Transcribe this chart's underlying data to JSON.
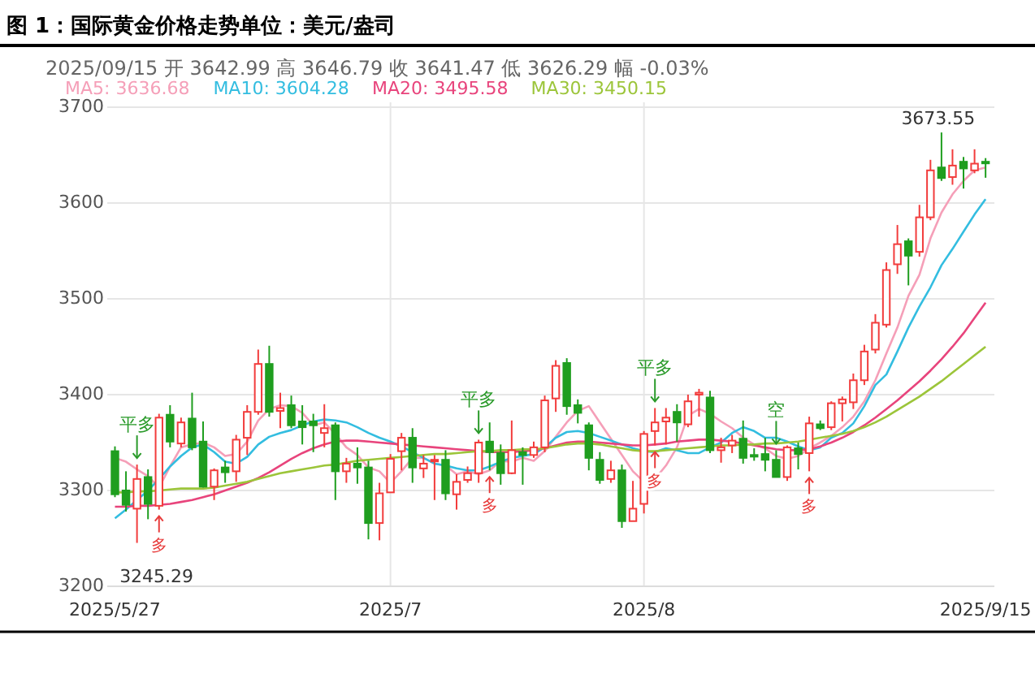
{
  "chart_data": {
    "type": "candlestick",
    "title": "图 1：国际黄金价格走势单位：美元/盎司",
    "subtitle": "2025/09/15 开 3642.99 高 3646.79 收 3641.47 低 3626.29 幅 -0.03%",
    "categories": [
      "2025/5/27",
      null,
      null,
      null,
      null,
      null,
      null,
      null,
      null,
      null,
      null,
      null,
      null,
      null,
      null,
      null,
      null,
      null,
      null,
      null,
      null,
      null,
      null,
      null,
      null,
      "2025/7",
      null,
      null,
      null,
      null,
      null,
      null,
      null,
      null,
      null,
      null,
      null,
      null,
      null,
      null,
      null,
      null,
      null,
      null,
      null,
      null,
      null,
      null,
      "2025/8",
      null,
      null,
      null,
      null,
      null,
      null,
      null,
      null,
      null,
      null,
      null,
      null,
      null,
      null,
      null,
      null,
      null,
      null,
      null,
      null,
      null,
      null,
      null,
      null,
      null,
      null,
      null,
      null,
      null,
      null,
      "2025/9/15"
    ],
    "ohlc": [
      [
        3341,
        3346,
        3293,
        3296
      ],
      [
        3300,
        3320,
        3278,
        3285
      ],
      [
        3281,
        3327,
        3245.29,
        3312
      ],
      [
        3314,
        3322,
        3270,
        3286
      ],
      [
        3284,
        3380,
        3280,
        3376
      ],
      [
        3379,
        3389,
        3345,
        3351
      ],
      [
        3349,
        3376,
        3345,
        3371
      ],
      [
        3375,
        3402,
        3342,
        3345
      ],
      [
        3351,
        3372,
        3303,
        3304
      ],
      [
        3304,
        3323,
        3290,
        3321
      ],
      [
        3324,
        3331,
        3308,
        3319
      ],
      [
        3320,
        3358,
        3309,
        3353
      ],
      [
        3355,
        3389,
        3337,
        3382
      ],
      [
        3382,
        3447,
        3379,
        3432
      ],
      [
        3432,
        3451,
        3377,
        3382
      ],
      [
        3383,
        3402,
        3365,
        3386
      ],
      [
        3389,
        3399,
        3365,
        3368
      ],
      [
        3372,
        3389,
        3348,
        3366
      ],
      [
        3372,
        3380,
        3340,
        3368
      ],
      [
        3360,
        3390,
        3345,
        3365
      ],
      [
        3368,
        3371,
        3290,
        3320
      ],
      [
        3320,
        3334,
        3308,
        3328
      ],
      [
        3328,
        3345,
        3307,
        3324
      ],
      [
        3324,
        3331,
        3249,
        3266
      ],
      [
        3266,
        3308,
        3248,
        3297
      ],
      [
        3298,
        3338,
        3298,
        3333
      ],
      [
        3341,
        3360,
        3321,
        3355
      ],
      [
        3355,
        3365,
        3308,
        3324
      ],
      [
        3323,
        3337,
        3313,
        3328
      ],
      [
        3331,
        3337,
        3290,
        3332
      ],
      [
        3332,
        3342,
        3290,
        3297
      ],
      [
        3296,
        3317,
        3280,
        3309
      ],
      [
        3311,
        3325,
        3308,
        3318
      ],
      [
        3318,
        3353,
        3308,
        3350
      ],
      [
        3351,
        3371,
        3321,
        3340
      ],
      [
        3339,
        3348,
        3306,
        3318
      ],
      [
        3318,
        3373,
        3317,
        3342
      ],
      [
        3340,
        3345,
        3306,
        3337
      ],
      [
        3337,
        3351,
        3334,
        3345
      ],
      [
        3345,
        3399,
        3340,
        3394
      ],
      [
        3396,
        3436,
        3382,
        3430
      ],
      [
        3433,
        3438,
        3379,
        3388
      ],
      [
        3389,
        3395,
        3370,
        3381
      ],
      [
        3368,
        3371,
        3321,
        3334
      ],
      [
        3332,
        3340,
        3307,
        3311
      ],
      [
        3312,
        3331,
        3308,
        3321
      ],
      [
        3321,
        3327,
        3261,
        3268
      ],
      [
        3268,
        3310,
        3268,
        3281
      ],
      [
        3286,
        3362,
        3276,
        3359
      ],
      [
        3362,
        3386,
        3347,
        3371
      ],
      [
        3372,
        3386,
        3348,
        3376
      ],
      [
        3382,
        3390,
        3351,
        3371
      ],
      [
        3369,
        3400,
        3366,
        3393
      ],
      [
        3400,
        3406,
        3377,
        3402
      ],
      [
        3397,
        3404,
        3339,
        3342
      ],
      [
        3342,
        3355,
        3329,
        3345
      ],
      [
        3347,
        3358,
        3339,
        3352
      ],
      [
        3354,
        3373,
        3328,
        3334
      ],
      [
        3337,
        3344,
        3331,
        3336
      ],
      [
        3338,
        3355,
        3320,
        3332
      ],
      [
        3332,
        3342,
        3314,
        3314
      ],
      [
        3314,
        3347,
        3310,
        3345
      ],
      [
        3344,
        3350,
        3322,
        3338
      ],
      [
        3339,
        3377,
        3320,
        3370
      ],
      [
        3369,
        3373,
        3363,
        3365
      ],
      [
        3366,
        3393,
        3363,
        3391
      ],
      [
        3391,
        3398,
        3372,
        3395
      ],
      [
        3392,
        3422,
        3385,
        3415
      ],
      [
        3415,
        3452,
        3410,
        3445
      ],
      [
        3447,
        3484,
        3443,
        3475
      ],
      [
        3473,
        3538,
        3470,
        3530
      ],
      [
        3536,
        3577,
        3526,
        3557
      ],
      [
        3560,
        3563,
        3514,
        3545
      ],
      [
        3549,
        3598,
        3544,
        3585
      ],
      [
        3585,
        3645,
        3582,
        3634
      ],
      [
        3637,
        3673.55,
        3623,
        3626
      ],
      [
        3627,
        3656,
        3619,
        3639
      ],
      [
        3643,
        3648,
        3615,
        3636
      ],
      [
        3634,
        3656,
        3631,
        3641
      ],
      [
        3642.99,
        3646.79,
        3626.29,
        3641.47
      ]
    ],
    "series": [
      {
        "name": "MA5: 3636.68",
        "type": "line",
        "color": "#f59fb8",
        "values": [
          3334,
          3330,
          3322,
          3315,
          3303,
          3325,
          3345,
          3348,
          3350,
          3345,
          3336,
          3338,
          3351,
          3373,
          3385,
          3389,
          3388,
          3381,
          3368,
          3371,
          3359,
          3345,
          3337,
          3324,
          3320,
          3308,
          3320,
          3334,
          3334,
          3328,
          3326,
          3317,
          3320,
          3317,
          3321,
          3331,
          3330,
          3334,
          3331,
          3341,
          3356,
          3371,
          3383,
          3388,
          3371,
          3354,
          3337,
          3320,
          3309,
          3312,
          3326,
          3345,
          3378,
          3385,
          3380,
          3372,
          3365,
          3355,
          3348,
          3344,
          3336,
          3333,
          3336,
          3344,
          3350,
          3357,
          3366,
          3377,
          3393,
          3415,
          3443,
          3470,
          3503,
          3525,
          3563,
          3590,
          3609,
          3623,
          3634,
          3637
        ]
      },
      {
        "name": "MA10: 3604.28",
        "type": "line",
        "color": "#33bde0",
        "values": [
          3271,
          3280,
          3290,
          3300,
          3312,
          3325,
          3336,
          3345,
          3348,
          3340,
          3330,
          3328,
          3335,
          3348,
          3356,
          3360,
          3363,
          3368,
          3372,
          3374,
          3373,
          3371,
          3366,
          3360,
          3355,
          3351,
          3346,
          3340,
          3334,
          3328,
          3326,
          3323,
          3321,
          3321,
          3325,
          3330,
          3334,
          3336,
          3338,
          3345,
          3355,
          3361,
          3362,
          3360,
          3356,
          3352,
          3348,
          3344,
          3341,
          3340,
          3344,
          3342,
          3339,
          3339,
          3345,
          3350,
          3360,
          3366,
          3362,
          3355,
          3355,
          3351,
          3346,
          3342,
          3345,
          3355,
          3360,
          3370,
          3388,
          3410,
          3421,
          3445,
          3470,
          3492,
          3512,
          3535,
          3552,
          3570,
          3588,
          3604
        ]
      },
      {
        "name": "MA20: 3495.58",
        "type": "line",
        "color": "#e8447c",
        "values": [
          3283,
          3283,
          3284,
          3284,
          3285,
          3286,
          3288,
          3290,
          3293,
          3296,
          3300,
          3304,
          3308,
          3313,
          3319,
          3326,
          3333,
          3339,
          3344,
          3348,
          3351,
          3352,
          3352,
          3351,
          3350,
          3349,
          3348,
          3347,
          3346,
          3345,
          3344,
          3343,
          3342,
          3341,
          3340,
          3340,
          3340,
          3341,
          3342,
          3344,
          3347,
          3350,
          3351,
          3351,
          3350,
          3349,
          3348,
          3347,
          3347,
          3348,
          3349,
          3351,
          3352,
          3353,
          3353,
          3352,
          3351,
          3349,
          3347,
          3345,
          3343,
          3342,
          3342,
          3343,
          3346,
          3350,
          3355,
          3361,
          3368,
          3376,
          3385,
          3394,
          3404,
          3414,
          3425,
          3437,
          3450,
          3464,
          3480,
          3496
        ]
      },
      {
        "name": "MA30: 3450.15",
        "type": "line",
        "color": "#9cc53a",
        "values": [
          3298,
          3298,
          3299,
          3299,
          3300,
          3301,
          3302,
          3302,
          3302,
          3303,
          3305,
          3307,
          3309,
          3312,
          3315,
          3318,
          3320,
          3322,
          3324,
          3326,
          3327,
          3329,
          3331,
          3332,
          3333,
          3334,
          3335,
          3336,
          3337,
          3338,
          3338,
          3339,
          3340,
          3341,
          3341,
          3342,
          3342,
          3343,
          3343,
          3344,
          3346,
          3348,
          3349,
          3349,
          3348,
          3346,
          3344,
          3342,
          3341,
          3341,
          3342,
          3343,
          3344,
          3345,
          3346,
          3347,
          3347,
          3348,
          3348,
          3349,
          3349,
          3350,
          3351,
          3353,
          3355,
          3357,
          3359,
          3362,
          3366,
          3371,
          3377,
          3384,
          3391,
          3398,
          3406,
          3414,
          3423,
          3432,
          3441,
          3450
        ]
      }
    ],
    "ylim": [
      3200,
      3705
    ],
    "yticks": [
      3200,
      3300,
      3400,
      3500,
      3600,
      3700
    ],
    "grid": true,
    "legend": "top left",
    "annotations": [
      "3245.29",
      "3673.55",
      "平多",
      "多",
      "平多",
      "多",
      "平多",
      "多",
      "空",
      "多"
    ]
  }
}
